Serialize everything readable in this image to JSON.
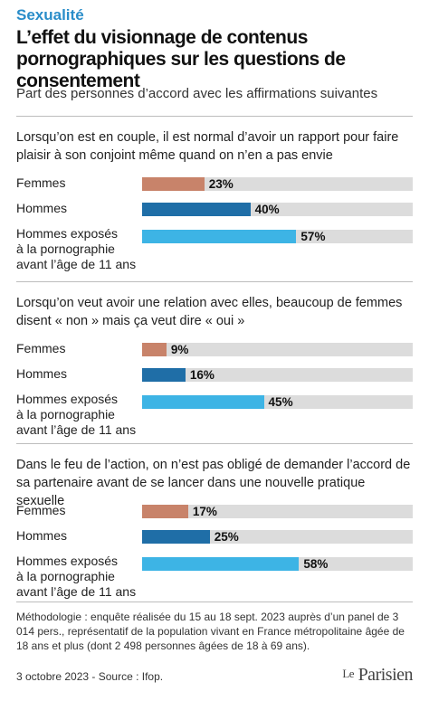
{
  "header": {
    "kicker": "Sexualité",
    "title": "L’effet du visionnage de contenus pornographiques sur les questions de consentement",
    "subtitle": "Part des personnes d’accord avec les affirmations suivantes"
  },
  "colors": {
    "femmes": "#c8836a",
    "hommes": "#1f6ea7",
    "hommes_exposes": "#3db4e5",
    "track": "#dcdcdc",
    "kicker": "#2a8dc9"
  },
  "chart_data": [
    {
      "type": "bar",
      "title": "Lorsqu’on est en couple, il est normal d’avoir un rapport pour faire plaisir à son conjoint même quand on n’en a pas envie",
      "categories": [
        "Femmes",
        "Hommes",
        "Hommes exposés\nà la pornographie\navant l’âge de 11 ans"
      ],
      "values": [
        23,
        40,
        57
      ],
      "labels": [
        "23%",
        "40%",
        "57%"
      ],
      "ylim": [
        0,
        100
      ]
    },
    {
      "type": "bar",
      "title": "Lorsqu’on veut avoir une relation avec elles, beaucoup de femmes disent « non » mais ça veut dire « oui »",
      "categories": [
        "Femmes",
        "Hommes",
        "Hommes exposés\nà la pornographie\navant l’âge de 11 ans"
      ],
      "values": [
        9,
        16,
        45
      ],
      "labels": [
        "9%",
        "16%",
        "45%"
      ],
      "ylim": [
        0,
        100
      ]
    },
    {
      "type": "bar",
      "title": "Dans le feu de l’action, on n’est pas obligé de demander l’accord de sa partenaire avant de se lancer dans une nouvelle pratique sexuelle",
      "categories": [
        "Femmes",
        "Hommes",
        "Hommes exposés\nà la pornographie\navant l’âge de 11 ans"
      ],
      "values": [
        17,
        25,
        58
      ],
      "labels": [
        "17%",
        "25%",
        "58%"
      ],
      "ylim": [
        0,
        100
      ]
    }
  ],
  "footer": {
    "methodology": "Méthodologie : enquête réalisée du 15 au 18 sept. 2023 auprès d’un panel de 3 014 pers., représentatif de la population vivant en France métropolitaine âgée de 18 ans et plus (dont 2 498 personnes âgées de 18 à 69 ans).",
    "source": "3 octobre 2023 - Source : Ifop.",
    "logo_le": "Le",
    "logo_name": "Parisien"
  }
}
